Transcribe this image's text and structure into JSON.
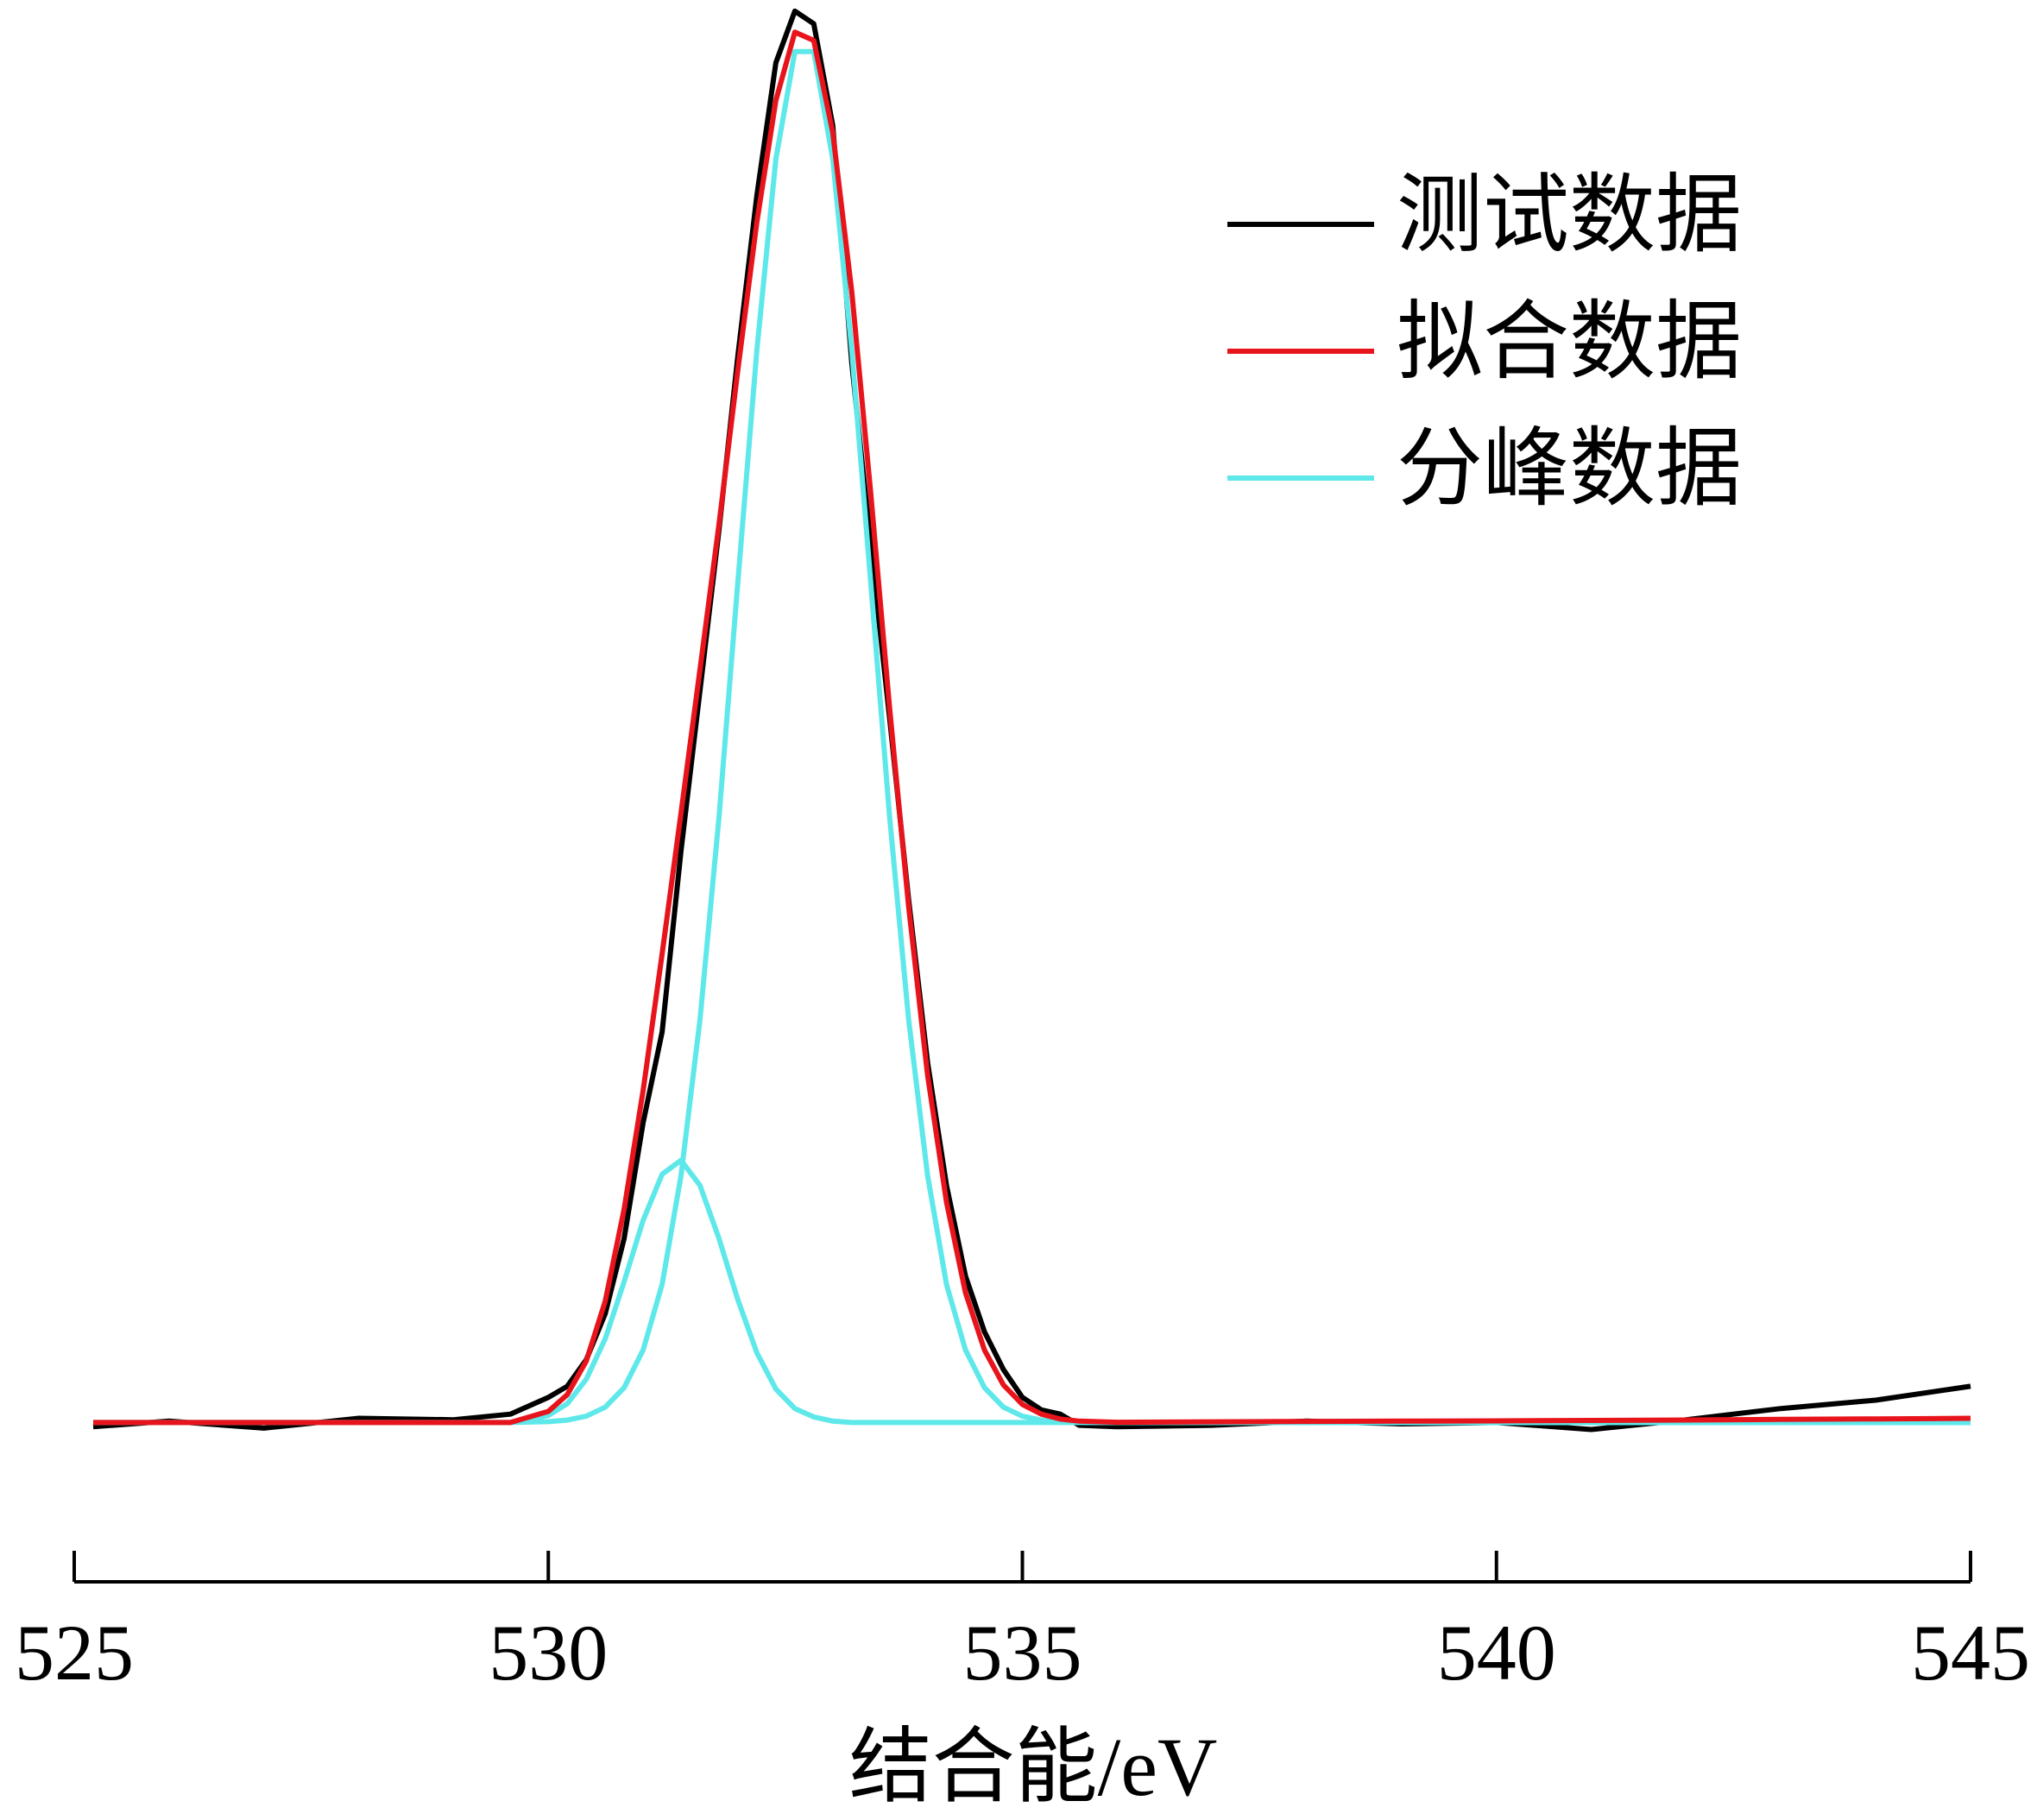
{
  "chart_data": {
    "type": "line",
    "x_label": "结合能/eV",
    "xlim": [
      525,
      545
    ],
    "xticks": [
      525,
      530,
      535,
      540,
      545
    ],
    "ylim": [
      -10,
      102
    ],
    "x": [
      525.2,
      526,
      527,
      528,
      529,
      529.6,
      530.0,
      530.2,
      530.4,
      530.6,
      530.8,
      531.0,
      531.2,
      531.4,
      531.6,
      531.8,
      532.0,
      532.2,
      532.4,
      532.6,
      532.8,
      533.0,
      533.2,
      533.4,
      533.6,
      533.8,
      534.0,
      534.2,
      534.4,
      534.6,
      534.8,
      535.0,
      535.2,
      535.4,
      535.6,
      536,
      537,
      538,
      539,
      540,
      541,
      542,
      543,
      544,
      544.6,
      545
    ],
    "legend": "upper right",
    "series": [
      {
        "name": "测试数据",
        "color": "#000000",
        "values": [
          -0.3,
          0.1,
          -0.4,
          0.3,
          0.2,
          0.6,
          1.8,
          2.6,
          4.5,
          7.8,
          13.2,
          21.5,
          28.0,
          41.0,
          52.5,
          64.0,
          76.5,
          88.0,
          97.5,
          101.2,
          100.3,
          93.0,
          76.0,
          63.0,
          50.5,
          37.5,
          25.8,
          17.0,
          10.5,
          6.5,
          3.8,
          1.8,
          0.9,
          0.6,
          -0.2,
          -0.3,
          -0.2,
          0.1,
          -0.1,
          0.0,
          -0.5,
          0.2,
          1.0,
          1.6,
          2.2,
          2.6
        ]
      },
      {
        "name": "拟合数据",
        "color": "#e8141c",
        "values": [
          0,
          0,
          0,
          0,
          0,
          0,
          0.8,
          2.0,
          4.4,
          8.7,
          15.3,
          23.8,
          33.6,
          43.7,
          54.0,
          64.4,
          75.5,
          86.1,
          94.8,
          99.7,
          99.1,
          92.5,
          81.1,
          66.7,
          51.2,
          37.0,
          24.9,
          15.8,
          9.3,
          5.2,
          2.7,
          1.3,
          0.6,
          0.25,
          0.1,
          0.02,
          0.05,
          0.08,
          0.1,
          0.12,
          0.15,
          0.18,
          0.22,
          0.26,
          0.28,
          0.3
        ]
      },
      {
        "name": "分峰数据",
        "color": "#5ee8ea",
        "values": [
          0,
          0,
          0,
          0,
          0,
          0,
          0.06,
          0.17,
          0.45,
          1.1,
          2.5,
          5.2,
          9.9,
          17.7,
          28.9,
          43.4,
          60.3,
          76.9,
          90.6,
          98.3,
          98.3,
          90.6,
          76.9,
          60.3,
          43.4,
          28.9,
          17.7,
          9.9,
          5.2,
          2.5,
          1.1,
          0.45,
          0.17,
          0.06,
          0.02,
          0,
          0,
          0,
          0,
          0,
          0,
          0,
          0,
          0,
          0,
          0
        ]
      },
      {
        "color": "#5ee8ea",
        "values": [
          0,
          0,
          0,
          0,
          0,
          0,
          0.51,
          1.35,
          3.1,
          6.0,
          10.1,
          14.5,
          17.8,
          18.8,
          17.0,
          13.2,
          8.8,
          5.0,
          2.4,
          1.0,
          0.4,
          0.1,
          0,
          0,
          0,
          0,
          0,
          0,
          0,
          0,
          0,
          0,
          0,
          0,
          0,
          0,
          0,
          0,
          0,
          0,
          0,
          0,
          0,
          0,
          0,
          0
        ]
      }
    ]
  }
}
